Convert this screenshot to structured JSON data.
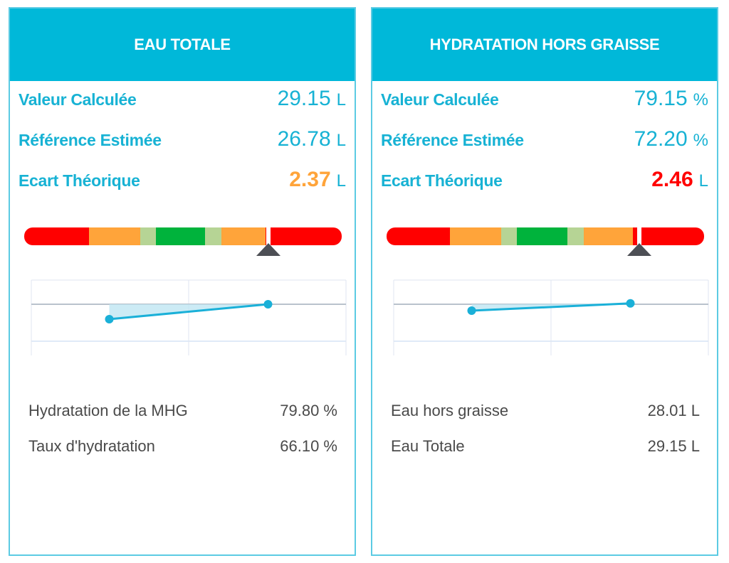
{
  "colors": {
    "accent": "#00b8d9",
    "label": "#17b2d4",
    "orange": "#ffa43a",
    "red": "#ff0000",
    "gauge_red": "#ff0000",
    "gauge_orange": "#ffa43a",
    "gauge_lightgreen": "#b6d495",
    "gauge_green": "#00b33c",
    "marker": "#4d4f55",
    "line": "#1ab0d8",
    "fill": "#bfe6f2"
  },
  "cards": [
    {
      "title": "EAU TOTALE",
      "metrics": [
        {
          "label": "Valeur Calculée",
          "value": "29.15",
          "unit": "L",
          "color": "#17b2d4"
        },
        {
          "label": "Référence Estimée",
          "value": "26.78",
          "unit": "L",
          "color": "#17b2d4"
        },
        {
          "label": "Ecart Théorique",
          "value": "2.37",
          "unit": "L",
          "color": "#ffa43a",
          "bold": true
        }
      ],
      "gauge": {
        "segments": [
          {
            "color": "#ff0000",
            "share": 0.205
          },
          {
            "color": "#ffa43a",
            "share": 0.16
          },
          {
            "color": "#b6d495",
            "share": 0.05
          },
          {
            "color": "#00b33c",
            "share": 0.155
          },
          {
            "color": "#b6d495",
            "share": 0.05
          },
          {
            "color": "#ffa43a",
            "share": 0.14
          },
          {
            "color": "#ff0000",
            "share": 0.24
          }
        ],
        "marker_position": 0.77
      },
      "trend": {
        "points": [
          {
            "x": 0.25,
            "y": -0.35
          },
          {
            "x": 0.75,
            "y": 0.0
          }
        ],
        "reference": 0.0,
        "fill_area": true
      },
      "extra": [
        {
          "label": "Hydratation de la MHG",
          "value": "79.80 %"
        },
        {
          "label": "Taux d'hydratation",
          "value": "66.10 %"
        }
      ]
    },
    {
      "title": "HYDRATATION HORS GRAISSE",
      "metrics": [
        {
          "label": "Valeur Calculée",
          "value": "79.15",
          "unit": "%",
          "color": "#17b2d4"
        },
        {
          "label": "Référence Estimée",
          "value": "72.20",
          "unit": "%",
          "color": "#17b2d4"
        },
        {
          "label": "Ecart Théorique",
          "value": "2.46",
          "unit": "L",
          "color": "#ff0000",
          "bold": true
        }
      ],
      "gauge": {
        "segments": [
          {
            "color": "#ff0000",
            "share": 0.2
          },
          {
            "color": "#ffa43a",
            "share": 0.16
          },
          {
            "color": "#b6d495",
            "share": 0.05
          },
          {
            "color": "#00b33c",
            "share": 0.16
          },
          {
            "color": "#b6d495",
            "share": 0.05
          },
          {
            "color": "#ffa43a",
            "share": 0.155
          },
          {
            "color": "#ff0000",
            "share": 0.225
          }
        ],
        "marker_position": 0.795
      },
      "trend": {
        "points": [
          {
            "x": 0.25,
            "y": -0.15
          },
          {
            "x": 0.75,
            "y": 0.02
          }
        ],
        "reference": 0.0,
        "fill_area": true
      },
      "extra": [
        {
          "label": "Eau hors graisse",
          "value": "28.01 L"
        },
        {
          "label": "Eau Totale",
          "value": "29.15 L"
        }
      ]
    }
  ]
}
